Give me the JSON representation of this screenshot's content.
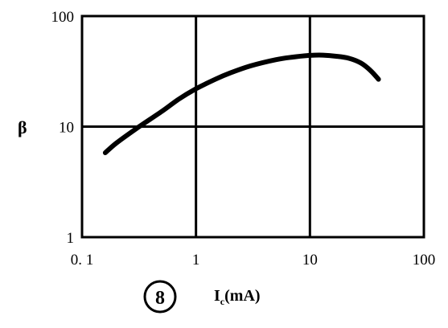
{
  "chart_data": {
    "type": "line",
    "figure_label": "8",
    "xlabel_main": "I",
    "xlabel_sub": "c",
    "xlabel_unit": "(mA)",
    "ylabel": "β",
    "x_scale": "log",
    "y_scale": "log",
    "xlim": [
      0.1,
      100
    ],
    "ylim": [
      1,
      100
    ],
    "grid": true,
    "x_ticks": [
      0.1,
      1,
      10,
      100
    ],
    "x_tick_labels": [
      "0. 1",
      "1",
      "10",
      "100"
    ],
    "y_ticks": [
      1,
      10,
      100
    ],
    "y_tick_labels": [
      "1",
      "10",
      "100"
    ],
    "series": [
      {
        "x": [
          0.16,
          0.2,
          0.3,
          0.5,
          0.7,
          1,
          1.5,
          2,
          3,
          5,
          7,
          10,
          13,
          17,
          22,
          28,
          34,
          40
        ],
        "y": [
          5.8,
          7.1,
          9.6,
          13.7,
          17.6,
          22,
          27,
          30.6,
          35.4,
          40.3,
          42.5,
          44.1,
          44.3,
          43.3,
          41.5,
          37.6,
          32.2,
          26.8
        ]
      }
    ]
  }
}
